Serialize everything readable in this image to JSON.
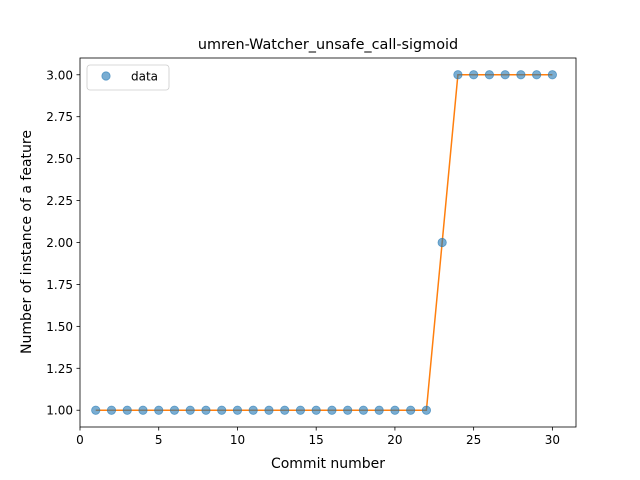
{
  "chart_data": {
    "type": "scatter",
    "title": "umren-Watcher_unsafe_call-sigmoid",
    "xlabel": "Commit number",
    "ylabel": "Number of instance of a feature",
    "xlim": [
      0.0,
      31.5
    ],
    "ylim": [
      0.9,
      3.1
    ],
    "x_ticks": [
      0,
      5,
      10,
      15,
      20,
      25,
      30
    ],
    "x_tick_labels": [
      "0",
      "5",
      "10",
      "15",
      "20",
      "25",
      "30"
    ],
    "y_ticks": [
      1.0,
      1.25,
      1.5,
      1.75,
      2.0,
      2.25,
      2.5,
      2.75,
      3.0
    ],
    "y_tick_labels": [
      "1.00",
      "1.25",
      "1.50",
      "1.75",
      "2.00",
      "2.25",
      "2.50",
      "2.75",
      "3.00"
    ],
    "grid": false,
    "legend_position": "top-left",
    "series": [
      {
        "name": "data",
        "kind": "markers",
        "color": "#1f77b4",
        "x": [
          1,
          2,
          3,
          4,
          5,
          6,
          7,
          8,
          9,
          10,
          11,
          12,
          13,
          14,
          15,
          16,
          17,
          18,
          19,
          20,
          21,
          22,
          23,
          24,
          25,
          26,
          27,
          28,
          29,
          30
        ],
        "y": [
          1,
          1,
          1,
          1,
          1,
          1,
          1,
          1,
          1,
          1,
          1,
          1,
          1,
          1,
          1,
          1,
          1,
          1,
          1,
          1,
          1,
          1,
          2,
          3,
          3,
          3,
          3,
          3,
          3,
          3
        ]
      },
      {
        "kind": "line",
        "color": "#ff7f0e",
        "x": [
          1,
          2,
          3,
          4,
          5,
          6,
          7,
          8,
          9,
          10,
          11,
          12,
          13,
          14,
          15,
          16,
          17,
          18,
          19,
          20,
          21,
          22,
          23,
          24,
          25,
          26,
          27,
          28,
          29,
          30
        ],
        "y": [
          1,
          1,
          1,
          1,
          1,
          1,
          1,
          1,
          1,
          1,
          1,
          1,
          1,
          1,
          1,
          1,
          1,
          1,
          1,
          1,
          1,
          1,
          2,
          3,
          3,
          3,
          3,
          3,
          3,
          3
        ]
      }
    ]
  }
}
